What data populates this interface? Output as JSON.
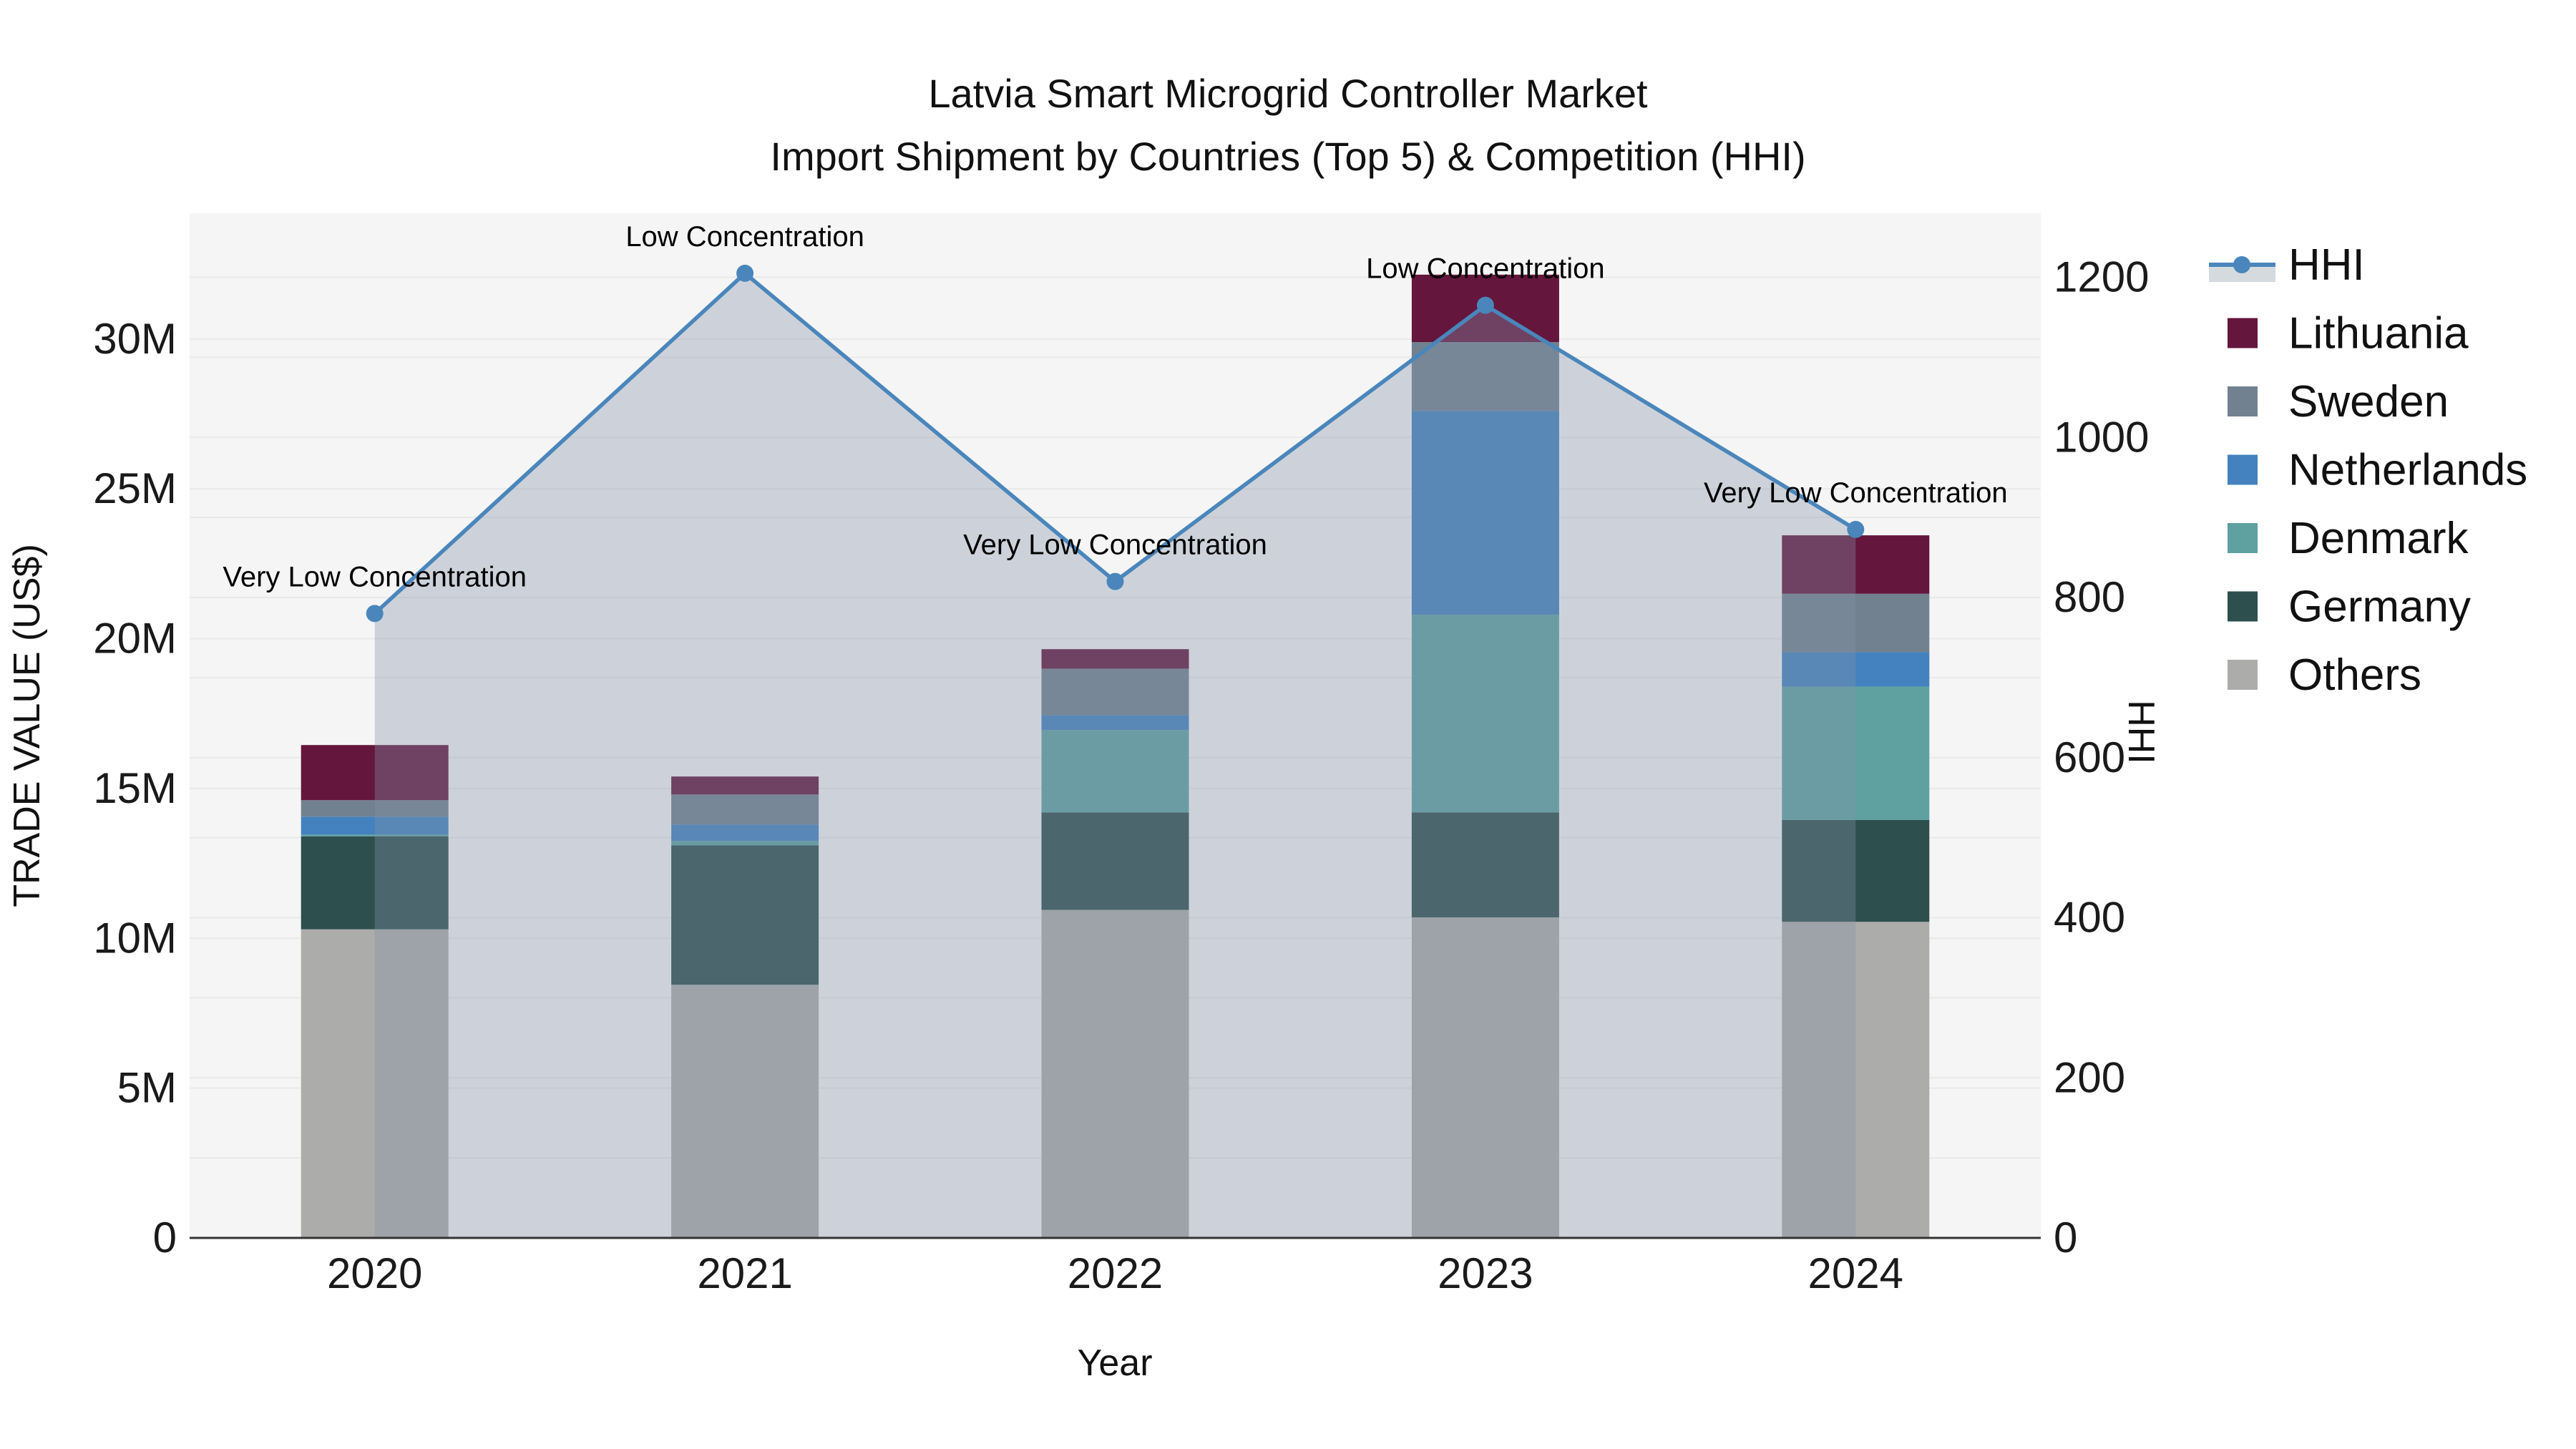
{
  "title": {
    "line1": "Latvia Smart Microgrid Controller Market",
    "line2": "Import Shipment by Countries (Top 5) & Competition (HHI)"
  },
  "axes": {
    "x": {
      "title": "Year",
      "categories": [
        "2020",
        "2021",
        "2022",
        "2023",
        "2024"
      ]
    },
    "y_left": {
      "title": "TRADE VALUE (US$)",
      "tick_labels": [
        "0",
        "5M",
        "10M",
        "15M",
        "20M",
        "25M",
        "30M"
      ],
      "tick_values_M": [
        0,
        5,
        10,
        15,
        20,
        25,
        30
      ],
      "max_M": 34.2
    },
    "y_right": {
      "title": "HHI",
      "tick_labels": [
        "0",
        "200",
        "400",
        "600",
        "800",
        "1000",
        "1200"
      ],
      "tick_values": [
        0,
        200,
        400,
        600,
        800,
        1000,
        1200
      ],
      "max": 1280,
      "grid_step": 100
    }
  },
  "chart_data": {
    "type": "bar+line",
    "title": "Latvia Smart Microgrid Controller Market",
    "subtitle": "Import Shipment by Countries (Top 5) & Competition (HHI)",
    "xlabel": "Year",
    "ylabel_left": "TRADE VALUE (US$)",
    "ylabel_right": "HHI",
    "categories": [
      "2020",
      "2021",
      "2022",
      "2023",
      "2024"
    ],
    "stack_order_bottom_to_top": [
      "Others",
      "Germany",
      "Denmark",
      "Netherlands",
      "Sweden",
      "Lithuania"
    ],
    "series": [
      {
        "name": "Lithuania",
        "color": "#64163C",
        "values_M": [
          1.84,
          0.6,
          0.65,
          2.25,
          1.95
        ]
      },
      {
        "name": "Sweden",
        "color": "#71818F",
        "values_M": [
          0.55,
          1.0,
          1.55,
          2.3,
          1.95
        ]
      },
      {
        "name": "Netherlands",
        "color": "#4382BE",
        "values_M": [
          0.6,
          0.55,
          0.5,
          6.8,
          1.15
        ]
      },
      {
        "name": "Denmark",
        "color": "#5FA1A1",
        "values_M": [
          0.06,
          0.15,
          2.75,
          6.6,
          4.45
        ]
      },
      {
        "name": "Germany",
        "color": "#2D4F4D",
        "values_M": [
          3.1,
          4.65,
          3.25,
          3.5,
          3.4
        ]
      },
      {
        "name": "Others",
        "color": "#ACACAA",
        "values_M": [
          10.3,
          8.45,
          10.95,
          10.7,
          10.55
        ]
      }
    ],
    "totals_M": [
      16.45,
      15.4,
      19.65,
      32.15,
      23.45
    ],
    "hhi": {
      "name": "HHI",
      "values": [
        780,
        1205,
        820,
        1165,
        885
      ]
    },
    "annotations": [
      {
        "x": "2020",
        "text": "Very Low Concentration"
      },
      {
        "x": "2021",
        "text": "Low Concentration"
      },
      {
        "x": "2022",
        "text": "Very Low Concentration"
      },
      {
        "x": "2023",
        "text": "Low Concentration"
      },
      {
        "x": "2024",
        "text": "Very Low Concentration"
      }
    ],
    "legend_position": "right",
    "grid": true
  },
  "legend": {
    "items": [
      {
        "label": "HHI",
        "type": "line"
      },
      {
        "label": "Lithuania",
        "type": "swatch",
        "color": "#64163C"
      },
      {
        "label": "Sweden",
        "type": "swatch",
        "color": "#71818F"
      },
      {
        "label": "Netherlands",
        "type": "swatch",
        "color": "#4382BE"
      },
      {
        "label": "Denmark",
        "type": "swatch",
        "color": "#5FA1A1"
      },
      {
        "label": "Germany",
        "type": "swatch",
        "color": "#2D4F4D"
      },
      {
        "label": "Others",
        "type": "swatch",
        "color": "#ACACAA"
      }
    ]
  },
  "style": {
    "plot_bg": "#F5F5F5",
    "grid_color": "#E9E9E9",
    "axis_line_color": "#333333",
    "hhi_line_color": "#4A86BB",
    "hhi_fill_color": "rgba(131,145,168,0.35)",
    "legend_band_color": "#D5DADF",
    "text_color": "#111111"
  }
}
